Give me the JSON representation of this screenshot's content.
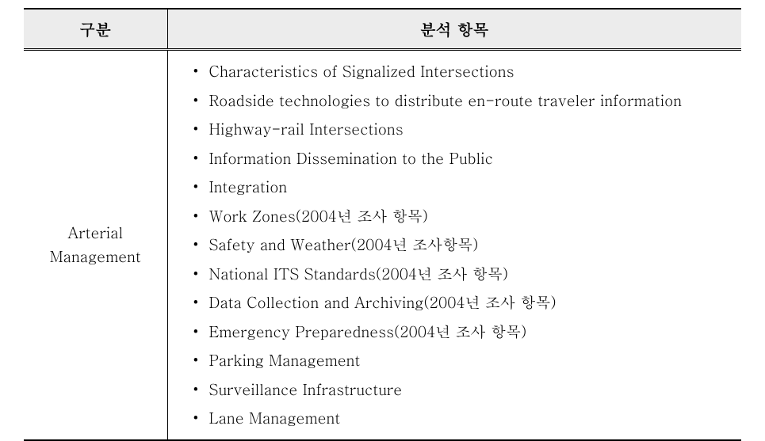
{
  "table": {
    "headers": {
      "category": "구분",
      "items": "분석 항목"
    },
    "row": {
      "category_line1": "Arterial",
      "category_line2": "Management",
      "items": [
        "Characteristics of Signalized Intersections",
        "Roadside technologies to distribute en-route traveler information",
        "Highway-rail Intersections",
        "Information Dissemination to the Public",
        "Integration",
        "Work Zones(2004년 조사 항목)",
        "Safety and Weather(2004년 조사항목)",
        "National ITS Standards(2004년 조사 항목)",
        "Data Collection and Archiving(2004년 조사 항목)",
        "Emergency Preparedness(2004년 조사 항목)",
        "Parking Management",
        "Surveillance Infrastructure",
        "Lane Management"
      ]
    }
  },
  "style": {
    "background_color": "#ffffff",
    "header_bg": "#ececec",
    "border_color": "#000000",
    "header_fontsize": 20,
    "body_fontsize": 19
  }
}
